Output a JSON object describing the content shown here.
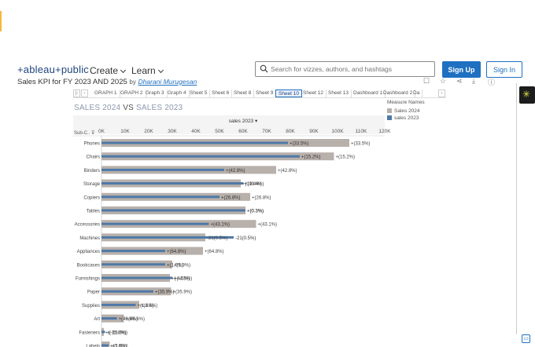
{
  "header": {
    "logo": "+ableau+public",
    "nav": {
      "create": "Create",
      "learn": "Learn"
    },
    "search_placeholder": "Search for vizzes, authors, and hashtags",
    "signup": "Sign Up",
    "signin": "Sign In"
  },
  "viz": {
    "title": "Sales KPI for FY 2023 AND 2025",
    "by": "by",
    "author": "Dharani Murugesan"
  },
  "tabs": [
    "GRAPH 1",
    "GRAPH 2",
    "Graph 3",
    "Graph 4",
    "Sheet 5",
    "Sheet 6",
    "Sheet 8",
    "Sheet 9",
    "Sheet 10",
    "Sheet 12",
    "Sheet 13",
    "Dashboard 1",
    "Dashboard 2",
    "Da"
  ],
  "active_tab": "Sheet 10",
  "chart_title": {
    "part1": "SALES 2024",
    "vs": "VS",
    "part2": "SALES 2023"
  },
  "legend": {
    "title": "Measure Names",
    "items": [
      {
        "label": "Sales 2024",
        "color": "#b8b0ab"
      },
      {
        "label": "sales 2023",
        "color": "#4e79a7"
      }
    ]
  },
  "chart_data": {
    "type": "bar",
    "title": "SALES 2024 VS SALES 2023",
    "xlabel": "sales 2023",
    "row_header": "Sub-C..",
    "xlim": [
      0,
      120000
    ],
    "ticks": [
      "0K",
      "10K",
      "20K",
      "30K",
      "40K",
      "50K",
      "60K",
      "70K",
      "80K",
      "90K",
      "100K",
      "110K",
      "120K"
    ],
    "categories": [
      "Phones",
      "Chairs",
      "Binders",
      "Storage",
      "Copiers",
      "Tables",
      "Accessories",
      "Machines",
      "Appliances",
      "Bookcases",
      "Furnishings",
      "Paper",
      "Supplies",
      "Art",
      "Fasteners",
      "Labels"
    ],
    "series": [
      {
        "name": "Sales 2024",
        "color": "#b8b0ab",
        "values": [
          105000,
          98500,
          74000,
          59000,
          63000,
          61000,
          65500,
          44000,
          43000,
          30000,
          29000,
          29500,
          16000,
          9500,
          1000,
          3500
        ]
      },
      {
        "name": "sales 2023",
        "color": "#4e79a7",
        "values": [
          79000,
          84000,
          52000,
          60000,
          50000,
          61000,
          45500,
          56000,
          27000,
          27000,
          30000,
          22000,
          14500,
          6500,
          1500,
          3000
        ]
      }
    ],
    "labels_2024": [
      "+(33.5%)",
      "+(15.2%)",
      "+(42.8%)",
      "+(19.4%)",
      "+(26.8%)",
      "+(0.3%)",
      "+(43.1%)",
      "-21(0.5%)",
      "+(64.8%)",
      "+(1.9%)",
      "+(-4.5%)",
      "+(35.9%)",
      "+(1.6%)",
      "+(46.6%)",
      "+(-15.0%)",
      "+(1.6%)"
    ],
    "labels_2023": [
      "+(33.5%)",
      "+(15.2%)",
      "+(42.8%)",
      "+(19.4%)",
      "+(26.8%)",
      "+(0.3%)",
      "+(43.1%)",
      "-21(0.5%)",
      "+(64.8%)",
      "+(1.9%)",
      "+(-4.5%)",
      "+(35.9%)",
      "+(1.6%)",
      "+(46.6%)",
      "+(-15.0%)",
      "+(1.6%)"
    ]
  }
}
